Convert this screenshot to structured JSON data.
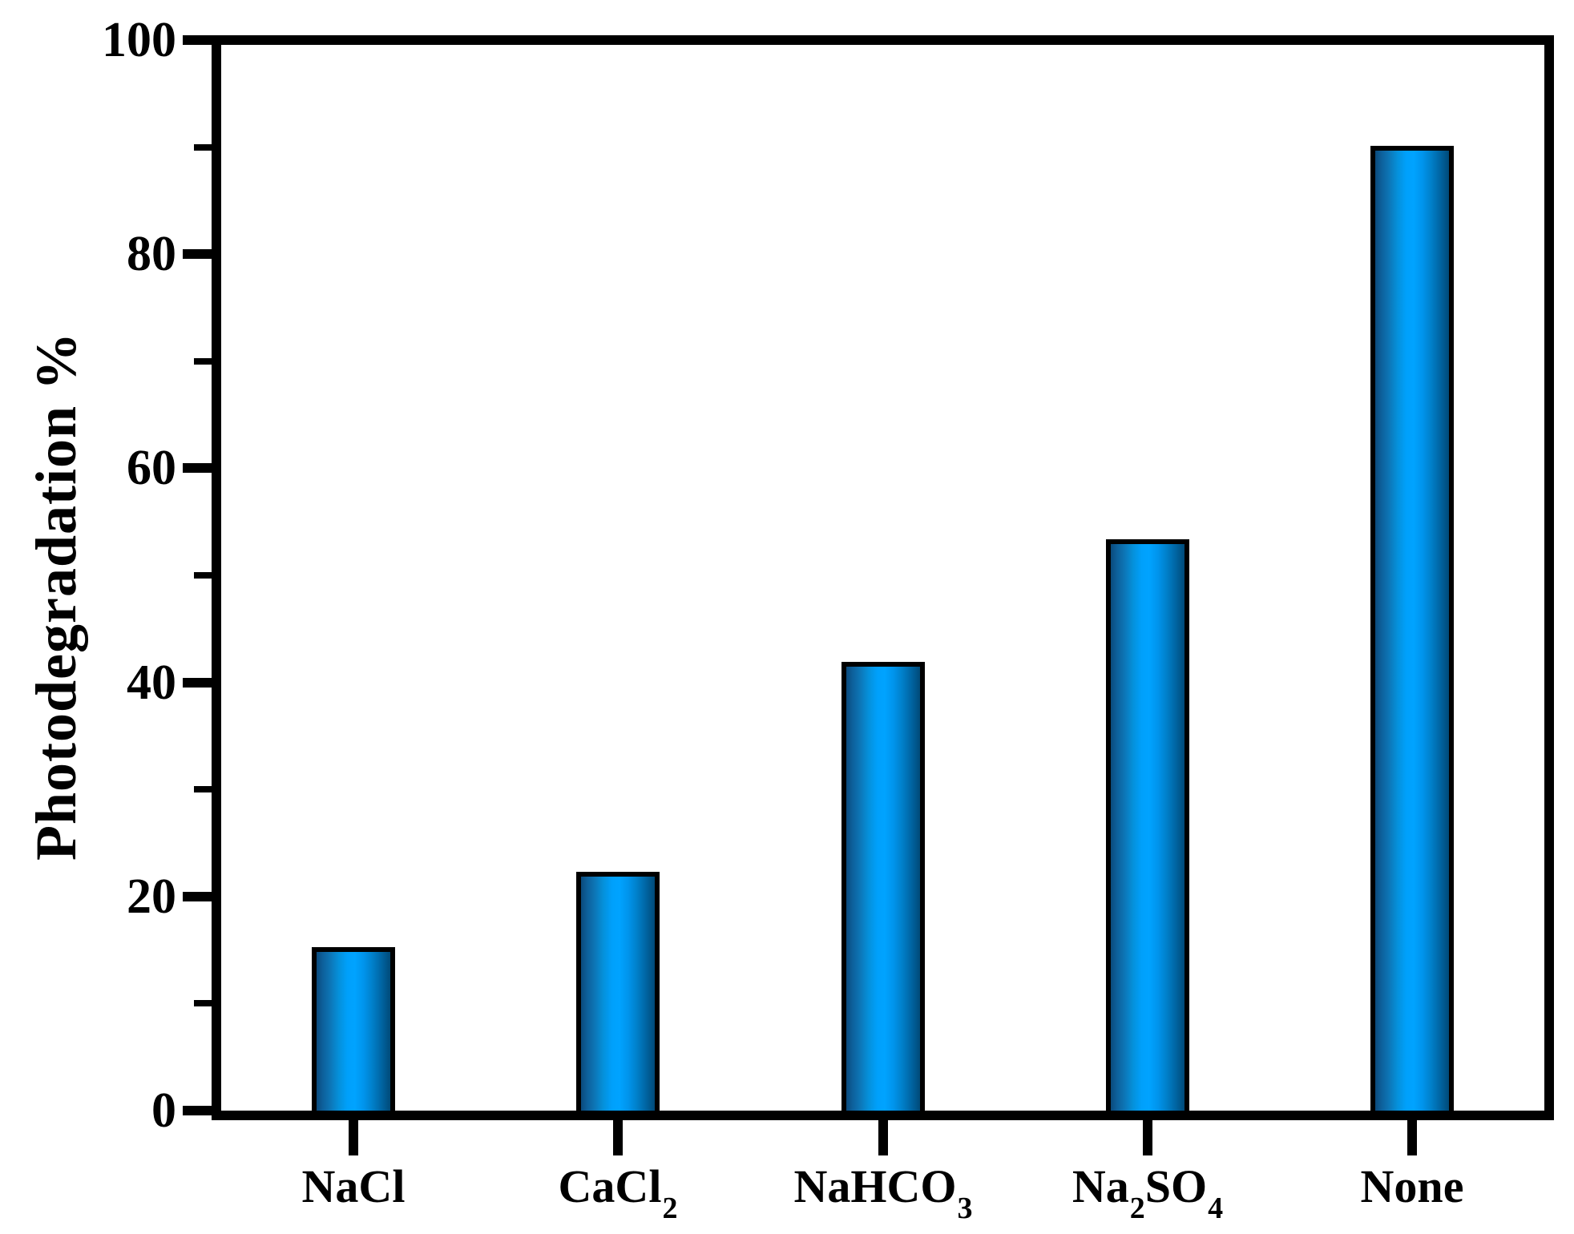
{
  "chart_data": {
    "type": "bar",
    "title": "",
    "ylabel": "Photodegradation %",
    "xlabel": "",
    "ylim": [
      0,
      100
    ],
    "yticks": [
      0,
      20,
      40,
      60,
      80,
      100
    ],
    "minor_yticks": [
      10,
      30,
      50,
      70,
      90
    ],
    "categories": [
      "NaCl",
      "CaCl2",
      "NaHCO3",
      "Na2SO4",
      "None"
    ],
    "category_labels": [
      [
        {
          "t": "NaCl"
        }
      ],
      [
        {
          "t": "CaCl"
        },
        {
          "s": "2"
        }
      ],
      [
        {
          "t": "NaHCO"
        },
        {
          "s": "3"
        }
      ],
      [
        {
          "t": "Na"
        },
        {
          "s": "2"
        },
        {
          "t": "SO"
        },
        {
          "s": "4"
        }
      ],
      [
        {
          "t": "None"
        }
      ]
    ],
    "values": [
      15.3,
      22.3,
      41.9,
      53.4,
      90.1
    ],
    "grid": false,
    "legend": "none",
    "bar_fill_gradient": [
      "#0a4a7c",
      "#00a3ff",
      "#004a78"
    ],
    "bar_border_color": "#000000",
    "axis_color": "#000000",
    "background_color": "#ffffff"
  }
}
